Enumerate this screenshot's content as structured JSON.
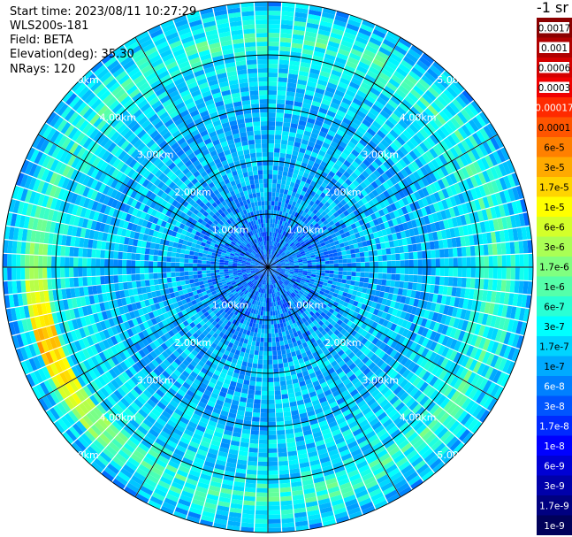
{
  "header": {
    "start_time": "Start time: 2023/08/11 10:27:29",
    "device": "WLS200s-181",
    "field": "Field: BETA",
    "elevation": "Elevation(deg): 35.30",
    "nrays": "NRays: 120"
  },
  "colorbar": {
    "unit_title": "-1 sr",
    "labels": [
      "0.0017",
      "0.001",
      "0.0006",
      "0.0003",
      "0.00017",
      "0.0001",
      "6e-5",
      "3e-5",
      "1.7e-5",
      "1e-5",
      "6e-6",
      "3e-6",
      "1.7e-6",
      "1e-6",
      "6e-7",
      "3e-7",
      "1.7e-7",
      "1e-7",
      "6e-8",
      "3e-8",
      "1.7e-8",
      "1e-8",
      "6e-9",
      "3e-9",
      "1.7e-9",
      "1e-9"
    ],
    "colors": [
      "#8b0000",
      "#b00000",
      "#d40000",
      "#f00000",
      "#ff2a00",
      "#ff5500",
      "#ff8000",
      "#ffaa00",
      "#ffd400",
      "#ffff00",
      "#d4ff2a",
      "#aaff55",
      "#80ff80",
      "#55ffaa",
      "#2affd4",
      "#00ffff",
      "#00d4ff",
      "#00aaff",
      "#0080ff",
      "#0055ff",
      "#002aff",
      "#0000ff",
      "#0000d4",
      "#0000aa",
      "#000080",
      "#00005a"
    ],
    "top_block_count": 4
  },
  "chart_data": {
    "type": "heatmap",
    "projection": "polar-ppi",
    "field": "BETA",
    "range_rings_km": [
      1,
      2,
      3,
      4,
      5
    ],
    "ring_labels": [
      "1.00km",
      "2.00km",
      "3.00km",
      "4.00km",
      "5.00km"
    ],
    "max_range_km": 5.0,
    "nrays": 120,
    "azimuth_gridlines_deg": [
      0,
      30,
      60,
      90,
      120,
      150,
      180,
      210,
      240,
      270,
      300,
      330
    ],
    "range_profile_log10_beta": [
      {
        "range_km": 0.0,
        "value": -7.4
      },
      {
        "range_km": 1.0,
        "value": -7.2
      },
      {
        "range_km": 2.0,
        "value": -6.9
      },
      {
        "range_km": 3.0,
        "value": -6.9
      },
      {
        "range_km": 3.5,
        "value": -6.7
      },
      {
        "range_km": 4.0,
        "value": -6.6
      },
      {
        "range_km": 4.3,
        "value": -6.2
      },
      {
        "range_km": 4.6,
        "value": -6.5
      },
      {
        "range_km": 5.0,
        "value": -7.0
      }
    ],
    "feature": {
      "azimuth_deg_range": [
        215,
        285
      ],
      "range_km": 4.35,
      "peak_log10_beta": -4.6
    }
  }
}
